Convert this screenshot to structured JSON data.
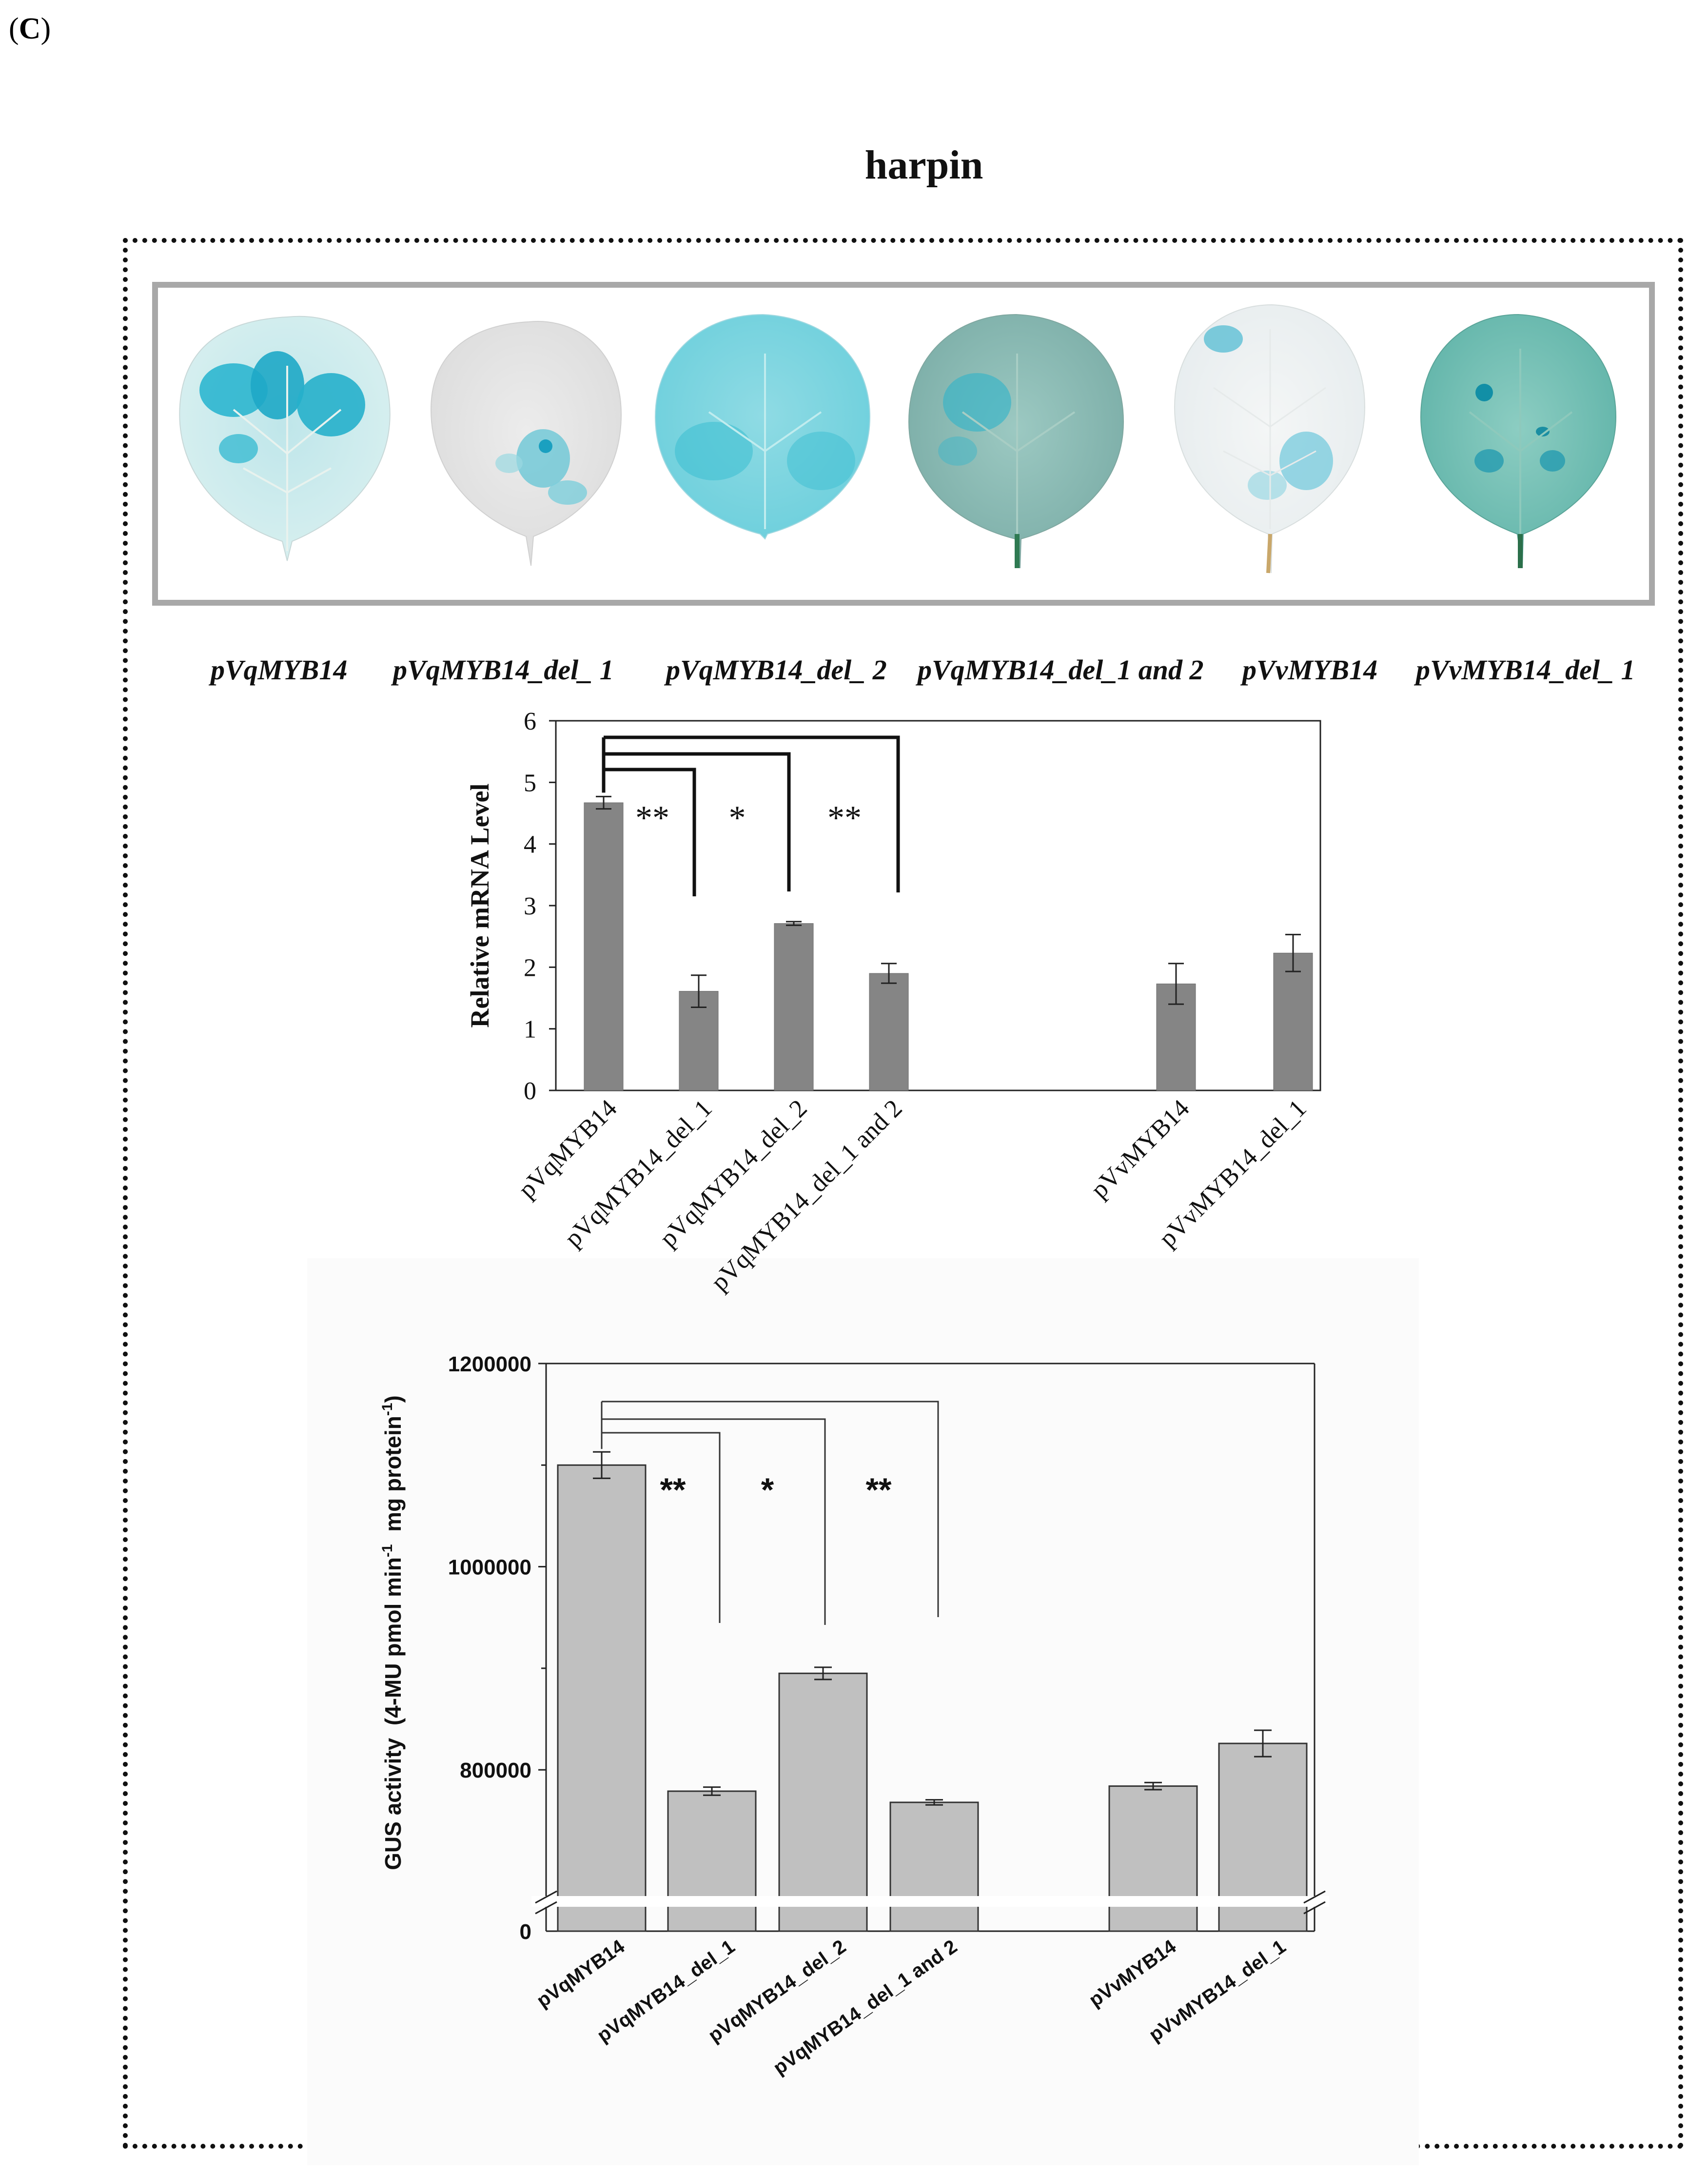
{
  "panel_label": {
    "open": "(",
    "letter": "C",
    "close": ")"
  },
  "title": "harpin",
  "leaves": [
    {
      "caption": "pVqMYB14",
      "stain": "strong-blue"
    },
    {
      "caption": "pVqMYB14_del_ 1",
      "stain": "weak-blue"
    },
    {
      "caption": "pVqMYB14_del_ 2",
      "stain": "diffuse-blue"
    },
    {
      "caption": "pVqMYB14_del_1 and 2",
      "stain": "green-blue"
    },
    {
      "caption": "pVvMYB14",
      "stain": "pale-blue"
    },
    {
      "caption": "pVvMYB14_del_ 1",
      "stain": "green-spotted"
    }
  ],
  "colors": {
    "mrna_bar": "#858585",
    "gus_bar": "#c0c0c0",
    "frame": "#111111",
    "leaf_box_border": "#a8a8a8"
  },
  "chart_data": [
    {
      "type": "bar",
      "id": "mrna",
      "categories": [
        "pVqMYB14",
        "pVqMYB14_del_1",
        "pVqMYB14_del_2",
        "pVqMYB14_del_1 and 2",
        "pVvMYB14",
        "pVvMYB14_del_1"
      ],
      "gap_after_index": 3,
      "values": [
        4.67,
        1.61,
        2.71,
        1.9,
        1.73,
        2.23
      ],
      "errors": [
        0.1,
        0.26,
        0.03,
        0.16,
        0.33,
        0.3
      ],
      "ylabel": "Relative mRNA Level",
      "ylim": [
        0,
        6
      ],
      "yticks": [
        "0",
        "1",
        "2",
        "3",
        "4",
        "5",
        "6"
      ],
      "significance": [
        {
          "from": 0,
          "to": 1,
          "label": "**"
        },
        {
          "from": 0,
          "to": 2,
          "label": "*"
        },
        {
          "from": 0,
          "to": 3,
          "label": "**"
        }
      ],
      "grid": false
    },
    {
      "type": "bar",
      "id": "gus",
      "categories": [
        "pVqMYB14",
        "pVqMYB14_del_1",
        "pVqMYB14_del_2",
        "pVqMYB14_del_1 and 2",
        "pVvMYB14",
        "pVvMYB14_del_1"
      ],
      "gap_after_index": 3,
      "values": [
        1100000,
        779000,
        895000,
        768000,
        784000,
        826000
      ],
      "errors": [
        13000,
        4000,
        6000,
        2500,
        3500,
        13000
      ],
      "ylabel_main": "GUS activity  (4-MU pmol min",
      "ylabel_sup1": "-1",
      "ylabel_mid": "  mg protein",
      "ylabel_sup2": "-1",
      "ylabel_end": ")",
      "ylim": [
        670000,
        1200000
      ],
      "axis_break": true,
      "break_floor_label": "0",
      "yticks": [
        {
          "value": 800000,
          "label": "800000"
        },
        {
          "value": 1000000,
          "label": "1000000"
        },
        {
          "value": 1200000,
          "label": "1200000"
        }
      ],
      "significance": [
        {
          "from": 0,
          "to": 1,
          "label": "**"
        },
        {
          "from": 0,
          "to": 2,
          "label": "*"
        },
        {
          "from": 0,
          "to": 3,
          "label": "**"
        }
      ],
      "grid": false
    }
  ]
}
